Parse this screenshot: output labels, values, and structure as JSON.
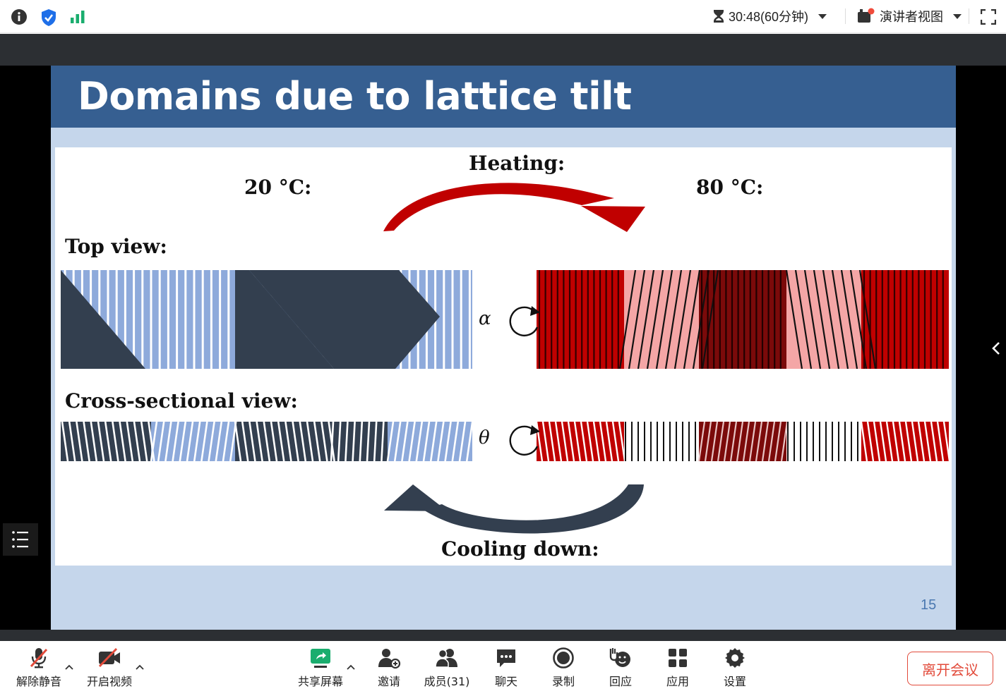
{
  "topbar": {
    "timer": "30:48(60分钟)",
    "presenter_view": "演讲者视图"
  },
  "slide": {
    "title": "Domains due to lattice tilt",
    "page_number": "15",
    "figure": {
      "heating_label": "Heating:",
      "cooling_label": "Cooling down:",
      "temp_left": "20 °C:",
      "temp_right": "80 °C:",
      "top_view_label": "Top view:",
      "cross_view_label": "Cross-sectional view:",
      "alpha_symbol": "α",
      "theta_symbol": "θ"
    }
  },
  "toolbar": {
    "unmute": "解除静音",
    "start_video": "开启视频",
    "share_screen": "共享屏幕",
    "invite": "邀请",
    "members": "成员(31)",
    "chat": "聊天",
    "record": "录制",
    "react": "回应",
    "apps": "应用",
    "settings": "设置",
    "leave": "离开会议"
  },
  "colors": {
    "title_bar": "#365f91",
    "slide_bg": "#c5d6eb",
    "dark_stripe": "#333f4f",
    "light_blue_stripe": "#8eaadb",
    "red": "#c00000",
    "pink": "#f4a6a6",
    "dark_red": "#7b0a0a",
    "leave_red": "#e24b3b",
    "share_green": "#1aad6e"
  }
}
